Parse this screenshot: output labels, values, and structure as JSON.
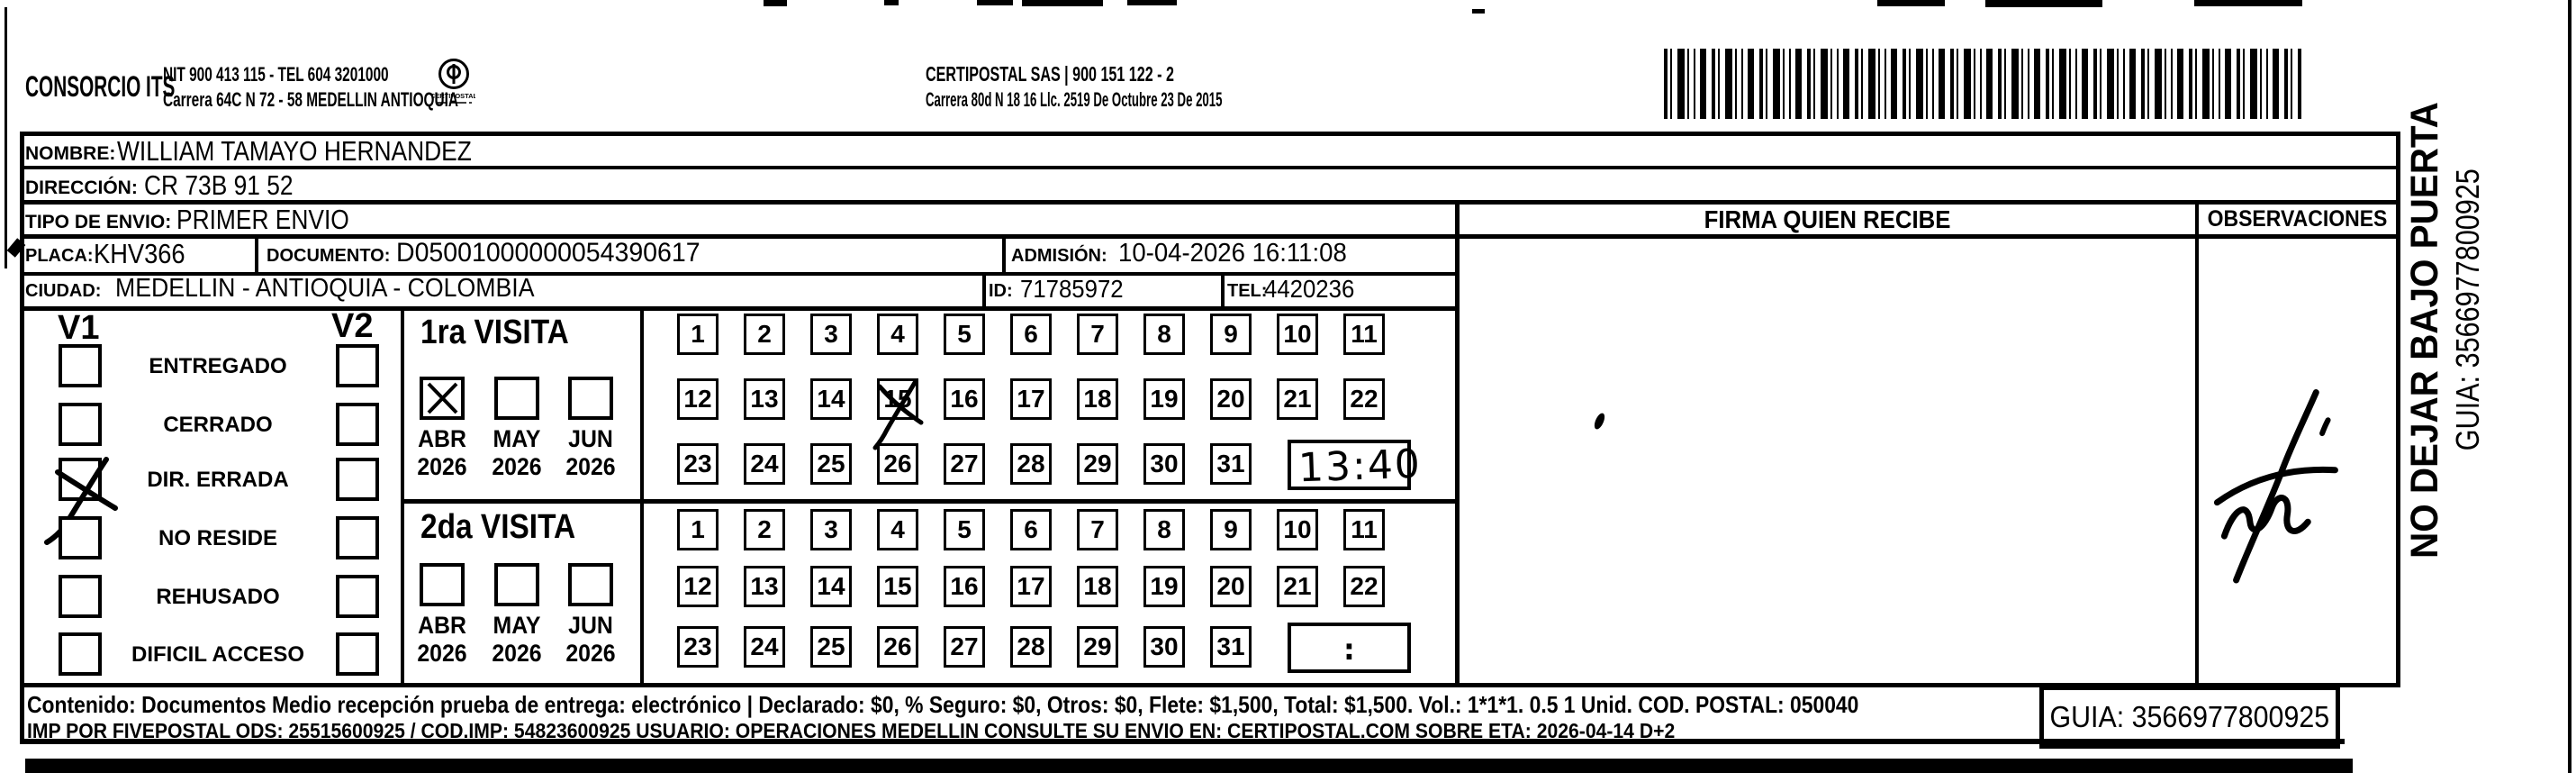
{
  "header": {
    "company": "CONSORCIO ITS",
    "nit_tel": "NIT 900 413 115 - TEL 604 3201000",
    "address": "Carrera 64C N 72 - 58 MEDELLIN ANTIOQUIA",
    "logo_caption": "CERTIPOSTAL",
    "partner": "CERTIPOSTAL SAS | 900 151 122 - 2",
    "partner_address": "Carrera 80d N 18 16  Llc. 2519 De Octubre 23 De 2015"
  },
  "shipment": {
    "nombre_label": "NOMBRE:",
    "nombre": "WILLIAM TAMAYO HERNANDEZ",
    "direccion_label": "DIRECCIÓN:",
    "direccion": "CR 73B 91 52",
    "tipo_label": "TIPO DE ENVIO:",
    "tipo": "PRIMER ENVIO",
    "placa_label": "PLACA:",
    "placa": "KHV366",
    "documento_label": "DOCUMENTO:",
    "documento": "D05001000000054390617",
    "admision_label": "ADMISIÓN:",
    "admision": "10-04-2026 16:11:08",
    "ciudad_label": "CIUDAD:",
    "ciudad": "MEDELLIN - ANTIOQUIA - COLOMBIA",
    "id_label": "ID:",
    "id_value": "71785972",
    "tel_label": "TEL:",
    "tel": "4420236"
  },
  "delivery_status": {
    "col1": "V1",
    "col2": "V2",
    "options": [
      "ENTREGADO",
      "CERRADO",
      "DIR. ERRADA",
      "NO RESIDE",
      "REHUSADO",
      "DIFICIL ACCESO"
    ],
    "v1_checked_index": 2
  },
  "visits": {
    "days": [
      1,
      2,
      3,
      4,
      5,
      6,
      7,
      8,
      9,
      10,
      11,
      12,
      13,
      14,
      15,
      16,
      17,
      18,
      19,
      20,
      21,
      22,
      23,
      24,
      25,
      26,
      27,
      28,
      29,
      30,
      31
    ],
    "first": {
      "title": "1ra VISITA",
      "months": [
        {
          "month": "ABR",
          "year": "2026",
          "checked": true
        },
        {
          "month": "MAY",
          "year": "2026",
          "checked": false
        },
        {
          "month": "JUN",
          "year": "2026",
          "checked": false
        }
      ],
      "crossed_day": 15,
      "time": "13:40"
    },
    "second": {
      "title": "2da VISITA",
      "months": [
        {
          "month": "ABR",
          "year": "2026",
          "checked": false
        },
        {
          "month": "MAY",
          "year": "2026",
          "checked": false
        },
        {
          "month": "JUN",
          "year": "2026",
          "checked": false
        }
      ],
      "crossed_day": null,
      "time": ":"
    }
  },
  "panels": {
    "firma": "FIRMA QUIEN RECIBE",
    "observaciones": "OBSERVACIONES"
  },
  "side": {
    "warning": "NO DEJAR BAJO PUERTA",
    "guia": "GUIA: 3566977800925"
  },
  "footer": {
    "line1": "Contenido: Documentos Medio recepción prueba de entrega: electrónico | Declarado: $0, % Seguro: $0, Otros: $0, Flete: $1,500, Total: $1,500. Vol.: 1*1*1. 0.5 1 Unid. COD. POSTAL: 050040",
    "line2": "IMP POR FIVEPOSTAL ODS: 25515600925 / COD.IMP: 54823600925 USUARIO: OPERACIONES MEDELLIN CONSULTE SU ENVIO EN: CERTIPOSTAL.COM SOBRE ETA: 2026-04-14 D+2",
    "guia": "GUIA: 3566977800925"
  }
}
